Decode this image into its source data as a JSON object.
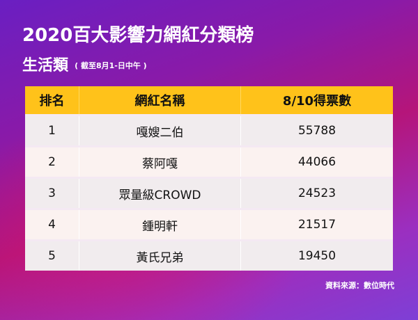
{
  "header": {
    "title": "2020百大影響力網紅分類榜",
    "subtitle": "生活類",
    "note": "( 截至8月1-日中午 )"
  },
  "table": {
    "columns": [
      "排名",
      "網紅名稱",
      "8/10得票數"
    ],
    "rows": [
      {
        "rank": "1",
        "name": "嘎嫂二伯",
        "votes": "55788"
      },
      {
        "rank": "2",
        "name": "蔡阿嘎",
        "votes": "44066"
      },
      {
        "rank": "3",
        "name": "眾量級CROWD",
        "votes": "24523"
      },
      {
        "rank": "4",
        "name": "鍾明軒",
        "votes": "21517"
      },
      {
        "rank": "5",
        "name": "黃氏兄弟",
        "votes": "19450"
      }
    ]
  },
  "footer": {
    "source": "資料來源：數位時代"
  },
  "colors": {
    "header_bg": "#ffc21a",
    "row_bg": "#f1ecee",
    "text": "#111111"
  }
}
